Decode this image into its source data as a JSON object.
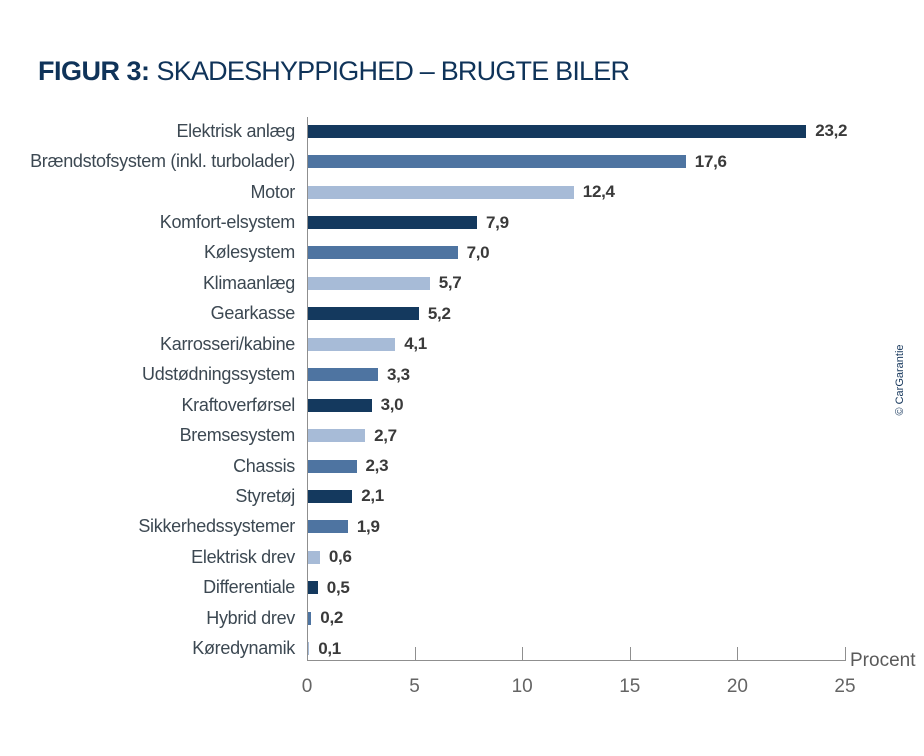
{
  "header": {
    "title_prefix": "FIGUR 3:",
    "title_rest": "SKADESHYPPIGHED – BRUGTE BILER"
  },
  "credit": "© CarGarantie",
  "chart_data": {
    "type": "bar",
    "orientation": "horizontal",
    "title": "FIGUR 3: SKADESHYPPIGHED – BRUGTE BILER",
    "categories": [
      "Elektrisk anlæg",
      "Brændstofsystem (inkl. turbolader)",
      "Motor",
      "Komfort-elsystem",
      "Kølesystem",
      "Klimaanlæg",
      "Gearkasse",
      "Karrosseri/kabine",
      "Udstødningssystem",
      "Kraftoverførsel",
      "Bremsesystem",
      "Chassis",
      "Styretøj",
      "Sikkerhedssystemer",
      "Elektrisk drev",
      "Differentiale",
      "Hybrid drev",
      "Køredynamik"
    ],
    "values": [
      23.2,
      17.6,
      12.4,
      7.9,
      7.0,
      5.7,
      5.2,
      4.1,
      3.3,
      3.0,
      2.7,
      2.3,
      2.1,
      1.9,
      0.6,
      0.5,
      0.2,
      0.1
    ],
    "value_labels": [
      "23,2",
      "17,6",
      "12,4",
      "7,9",
      "7,0",
      "5,7",
      "5,2",
      "4,1",
      "3,3",
      "3,0",
      "2,7",
      "2,3",
      "2,1",
      "1,9",
      "0,6",
      "0,5",
      "0,2",
      "0,1"
    ],
    "bar_shades": [
      "dark",
      "medium",
      "light",
      "dark",
      "medium",
      "light",
      "dark",
      "light",
      "medium",
      "dark",
      "light",
      "medium",
      "dark",
      "medium",
      "light",
      "dark",
      "medium",
      "light"
    ],
    "colors": {
      "dark": "#14395e",
      "medium": "#4e74a1",
      "light": "#a7bbd7"
    },
    "xlabel": "Procent",
    "x_ticks": [
      0,
      5,
      10,
      15,
      20,
      25
    ],
    "xlim": [
      0,
      25
    ],
    "grid": false,
    "legend": null
  }
}
